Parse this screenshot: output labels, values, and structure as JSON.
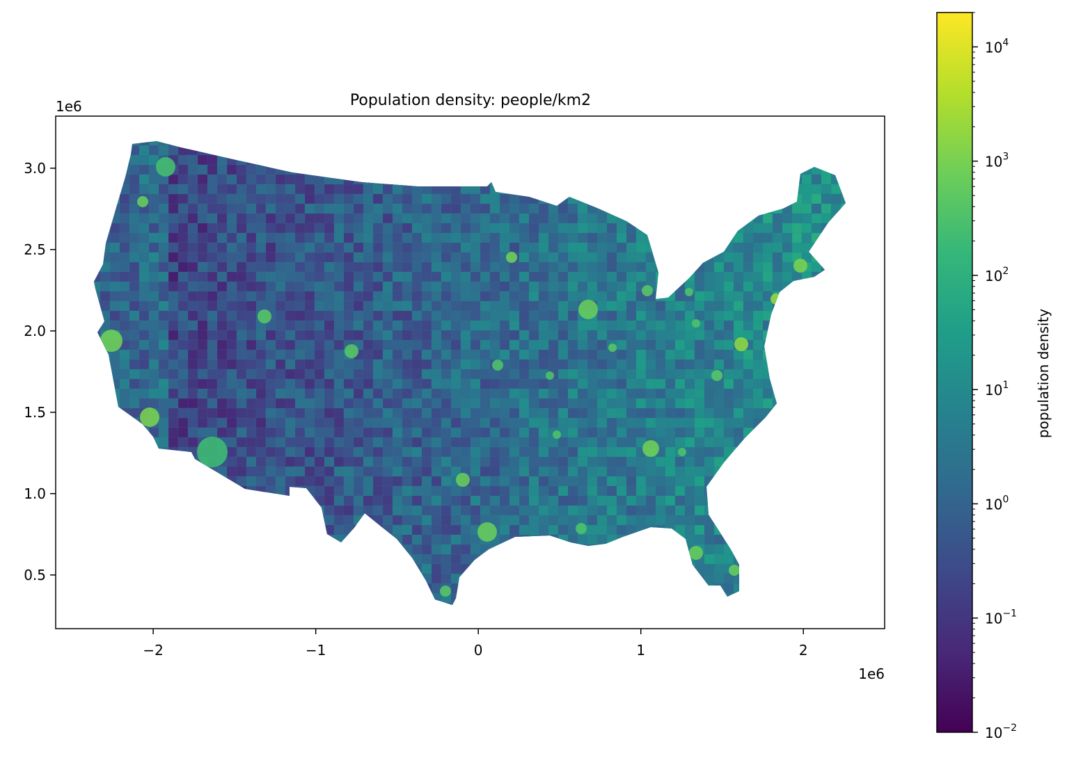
{
  "title": "Population density: people/km2",
  "map": {
    "x_ticks": [
      "−2",
      "−1",
      "0",
      "1",
      "2"
    ],
    "x_tick_values": [
      -2,
      -1,
      0,
      1,
      2
    ],
    "x_offset": "1e6",
    "xlim": [
      -2.6,
      2.5
    ],
    "y_ticks": [
      "0.5",
      "1.0",
      "1.5",
      "2.0",
      "2.5",
      "3.0"
    ],
    "y_tick_values": [
      0.5,
      1.0,
      1.5,
      2.0,
      2.5,
      3.0
    ],
    "y_offset": "1e6",
    "ylim": [
      0.17,
      3.32
    ]
  },
  "colorbar": {
    "label": "population density",
    "scale": "log",
    "colormap": "viridis",
    "range": [
      0.01,
      20000
    ],
    "tick_values": [
      0.01,
      0.1,
      1,
      10,
      100,
      1000,
      10000
    ],
    "tick_bases": [
      "10",
      "10",
      "10",
      "10",
      "10",
      "10",
      "10"
    ],
    "tick_exponents": [
      "−2",
      "−1",
      "0",
      "1",
      "2",
      "3",
      "4"
    ]
  },
  "colors": {
    "viridis_stops": [
      "#440154",
      "#482878",
      "#3e4989",
      "#31688e",
      "#26828e",
      "#1f9e89",
      "#35b779",
      "#6ece58",
      "#b5de2b",
      "#fde725"
    ]
  }
}
